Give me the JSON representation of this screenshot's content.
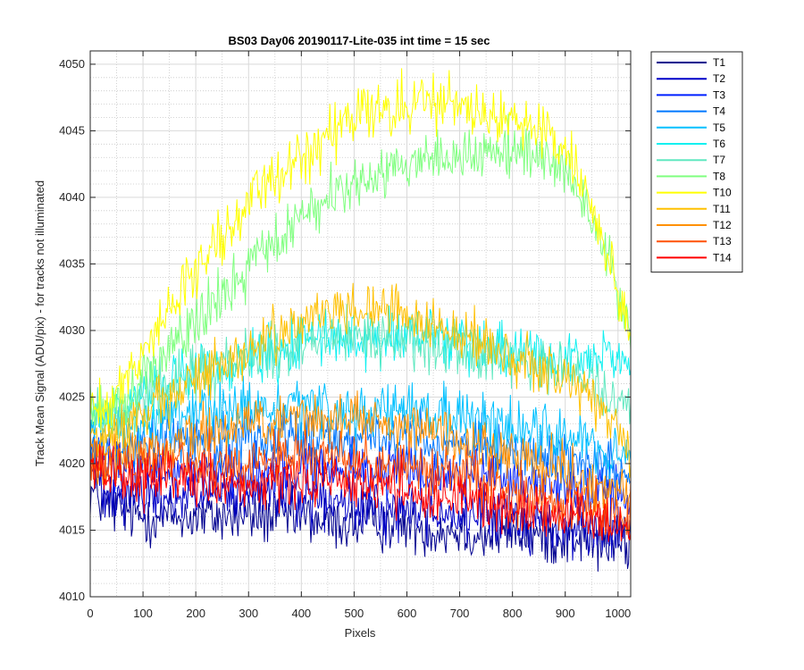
{
  "chart_data": {
    "type": "line",
    "title": "BS03 Day06 20190117-Lite-035 int time = 15 sec",
    "xlabel": "Pixels",
    "ylabel": "Track Mean Signal (ADU/pix) - for tracks not illuminated",
    "xlim": [
      0,
      1024
    ],
    "ylim": [
      4010,
      4051
    ],
    "xticks": [
      0,
      100,
      200,
      300,
      400,
      500,
      600,
      700,
      800,
      900,
      1000
    ],
    "yticks": [
      4010,
      4015,
      4020,
      4025,
      4030,
      4035,
      4040,
      4045,
      4050
    ],
    "grid": true,
    "minor_grid": true,
    "legend_position": "outside-top-right",
    "x": [
      0,
      25,
      50,
      100,
      150,
      200,
      250,
      300,
      350,
      400,
      450,
      500,
      550,
      600,
      650,
      700,
      750,
      800,
      850,
      900,
      925,
      950,
      975,
      1000,
      1024
    ],
    "noise_amplitude": 1.6,
    "series": [
      {
        "name": "T1",
        "color": "#00008f",
        "values": [
          4018,
          4017,
          4016.5,
          4016,
          4016,
          4016,
          4016,
          4016,
          4016,
          4016,
          4015.5,
          4015.5,
          4015.5,
          4015.5,
          4015,
          4015,
          4014.5,
          4015,
          4014.5,
          4014.5,
          4014.5,
          4014,
          4014,
          4014,
          4014
        ]
      },
      {
        "name": "T2",
        "color": "#0000c8",
        "values": [
          4019.5,
          4018.5,
          4018,
          4017.5,
          4017.5,
          4017.5,
          4017.5,
          4017.5,
          4017.5,
          4017.5,
          4017,
          4017,
          4016.5,
          4016.5,
          4016.5,
          4016,
          4016,
          4016,
          4015.5,
          4015.5,
          4015.5,
          4015,
          4015,
          4015,
          4015
        ]
      },
      {
        "name": "T3",
        "color": "#0020ff",
        "values": [
          4021,
          4020,
          4019.5,
          4019.5,
          4019.5,
          4019.5,
          4019.5,
          4019.5,
          4019.5,
          4019.5,
          4019.5,
          4019.5,
          4019.5,
          4019.5,
          4019,
          4019,
          4019,
          4018.5,
          4018.5,
          4018.5,
          4018,
          4018,
          4018,
          4017.5,
          4017.5
        ]
      },
      {
        "name": "T4",
        "color": "#0078ff",
        "values": [
          4022,
          4021,
          4021,
          4021.5,
          4022,
          4022,
          4022,
          4022,
          4022,
          4022,
          4022,
          4022,
          4022,
          4022,
          4021.5,
          4021.5,
          4021,
          4021,
          4020.5,
          4020.5,
          4020.5,
          4020,
          4020,
          4019.5,
          4019.5
        ]
      },
      {
        "name": "T5",
        "color": "#00c0ff",
        "values": [
          4023,
          4022.5,
          4022.5,
          4023,
          4023.5,
          4024,
          4024,
          4024,
          4024,
          4024,
          4024,
          4024,
          4024,
          4024,
          4023.5,
          4023.5,
          4023,
          4023,
          4022.5,
          4022,
          4022,
          4021.5,
          4021,
          4020.5,
          4020
        ]
      },
      {
        "name": "T6",
        "color": "#10f0f0",
        "values": [
          4024,
          4023.5,
          4024,
          4025,
          4026,
          4027,
          4027.5,
          4028,
          4028.5,
          4029,
          4029.5,
          4029.5,
          4029.5,
          4029.5,
          4029.5,
          4029,
          4029,
          4028.5,
          4028.5,
          4028,
          4028,
          4028,
          4028,
          4028,
          4028
        ]
      },
      {
        "name": "T7",
        "color": "#60e8c0",
        "values": [
          4024,
          4023.5,
          4024,
          4025,
          4026,
          4027,
          4027.5,
          4028,
          4028.5,
          4029,
          4029.5,
          4029.5,
          4029.5,
          4029.5,
          4029,
          4028.5,
          4028,
          4028,
          4027.5,
          4027,
          4026.5,
          4026,
          4025.5,
          4025,
          4024.5
        ]
      },
      {
        "name": "T8",
        "color": "#80ff80",
        "values": [
          4024,
          4023.5,
          4024.5,
          4026,
          4028.5,
          4030.5,
          4032.5,
          4034.5,
          4036.5,
          4038.5,
          4040,
          4041,
          4042,
          4042.5,
          4043,
          4043,
          4043.5,
          4043.5,
          4043,
          4042,
          4040.5,
          4038.5,
          4036,
          4033,
          4029.5
        ]
      },
      {
        "name": "T10",
        "color": "#ffff00",
        "values": [
          4024.5,
          4024,
          4025.5,
          4028.5,
          4031.5,
          4034.5,
          4037,
          4039.5,
          4041.5,
          4043,
          4044.5,
          4046,
          4046.5,
          4047,
          4047,
          4047,
          4046.5,
          4046,
          4045,
          4043.5,
          4041.5,
          4039,
          4036,
          4033,
          4029.5
        ]
      },
      {
        "name": "T11",
        "color": "#ffc000",
        "values": [
          4022,
          4021.5,
          4022,
          4023.5,
          4025,
          4026.5,
          4027.5,
          4028.5,
          4029.5,
          4030.5,
          4031,
          4031.5,
          4031.5,
          4031,
          4030.5,
          4030,
          4029,
          4028,
          4027,
          4026,
          4025.5,
          4025,
          4024,
          4022.5,
          4021
        ]
      },
      {
        "name": "T12",
        "color": "#ff9000",
        "values": [
          4021,
          4020.5,
          4020.5,
          4021,
          4021.5,
          4022,
          4022.5,
          4023,
          4023.5,
          4023.5,
          4023.5,
          4023.5,
          4023,
          4022.5,
          4022,
          4021.5,
          4021,
          4020.5,
          4020,
          4019.5,
          4019,
          4018.5,
          4018,
          4018,
          4018
        ]
      },
      {
        "name": "T13",
        "color": "#ff5000",
        "values": [
          4020.5,
          4020,
          4020,
          4020,
          4020,
          4020,
          4020,
          4020,
          4020.5,
          4020.5,
          4020.5,
          4020.5,
          4020,
          4020,
          4019.5,
          4019,
          4018.5,
          4018,
          4017.5,
          4017,
          4017,
          4016.5,
          4016.5,
          4016,
          4016
        ]
      },
      {
        "name": "T14",
        "color": "#ff0000",
        "values": [
          4020,
          4019.5,
          4019,
          4019,
          4018.5,
          4018.5,
          4018.5,
          4018.5,
          4018.5,
          4018.5,
          4018.5,
          4018.5,
          4018.5,
          4018,
          4017.5,
          4017.5,
          4017,
          4016.5,
          4016.5,
          4016,
          4016,
          4015.5,
          4015.5,
          4015,
          4015
        ]
      }
    ]
  }
}
